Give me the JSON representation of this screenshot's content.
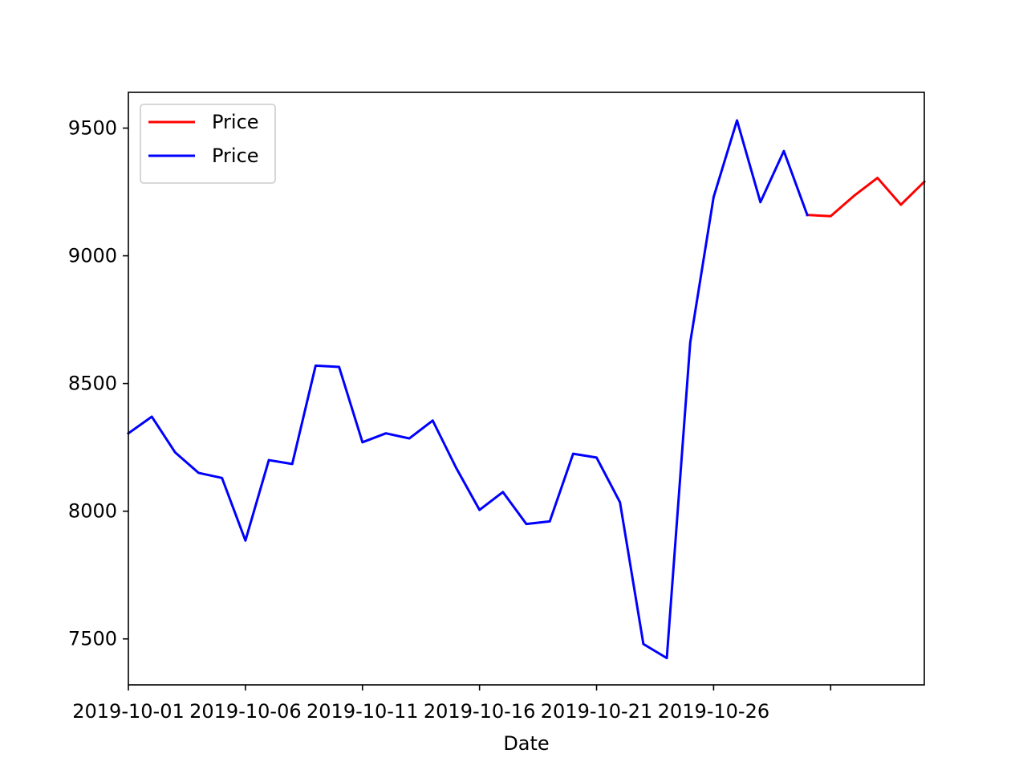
{
  "chart_data": {
    "type": "line",
    "title": "",
    "xlabel": "Date",
    "ylabel": "",
    "x_type": "date",
    "xlim": [
      "2019-10-01",
      "2019-11-04"
    ],
    "ylim": [
      7320,
      9640
    ],
    "x_ticks": [
      "2019-10-01",
      "2019-10-06",
      "2019-10-11",
      "2019-10-16",
      "2019-10-21",
      "2019-10-26",
      "2019-10-31"
    ],
    "x_tick_labels": [
      "2019-10-01",
      "2019-10-06",
      "2019-10-11",
      "2019-10-16",
      "2019-10-21",
      "2019-10-26",
      ""
    ],
    "y_ticks": [
      7500,
      8000,
      8500,
      9000,
      9500
    ],
    "y_tick_labels": [
      "7500",
      "8000",
      "8500",
      "9000",
      "9500"
    ],
    "grid": false,
    "legend_position": "top-left",
    "series": [
      {
        "name": "Price",
        "color": "#ff0000",
        "x": [
          "2019-10-30",
          "2019-10-31",
          "2019-11-01",
          "2019-11-02",
          "2019-11-03",
          "2019-11-04"
        ],
        "values": [
          9160,
          9155,
          9235,
          9305,
          9200,
          9290
        ]
      },
      {
        "name": "Price",
        "color": "#0000ff",
        "x": [
          "2019-10-01",
          "2019-10-02",
          "2019-10-03",
          "2019-10-04",
          "2019-10-05",
          "2019-10-06",
          "2019-10-07",
          "2019-10-08",
          "2019-10-09",
          "2019-10-10",
          "2019-10-11",
          "2019-10-12",
          "2019-10-13",
          "2019-10-14",
          "2019-10-15",
          "2019-10-16",
          "2019-10-17",
          "2019-10-18",
          "2019-10-19",
          "2019-10-20",
          "2019-10-21",
          "2019-10-22",
          "2019-10-23",
          "2019-10-24",
          "2019-10-25",
          "2019-10-26",
          "2019-10-27",
          "2019-10-28",
          "2019-10-29",
          "2019-10-30"
        ],
        "values": [
          8305,
          8370,
          8230,
          8150,
          8130,
          7885,
          8200,
          8185,
          8570,
          8565,
          8270,
          8305,
          8285,
          8355,
          8170,
          8005,
          8075,
          7950,
          7960,
          8225,
          8210,
          8035,
          7480,
          7425,
          8660,
          9230,
          9530,
          9210,
          9410,
          9160
        ]
      }
    ]
  }
}
